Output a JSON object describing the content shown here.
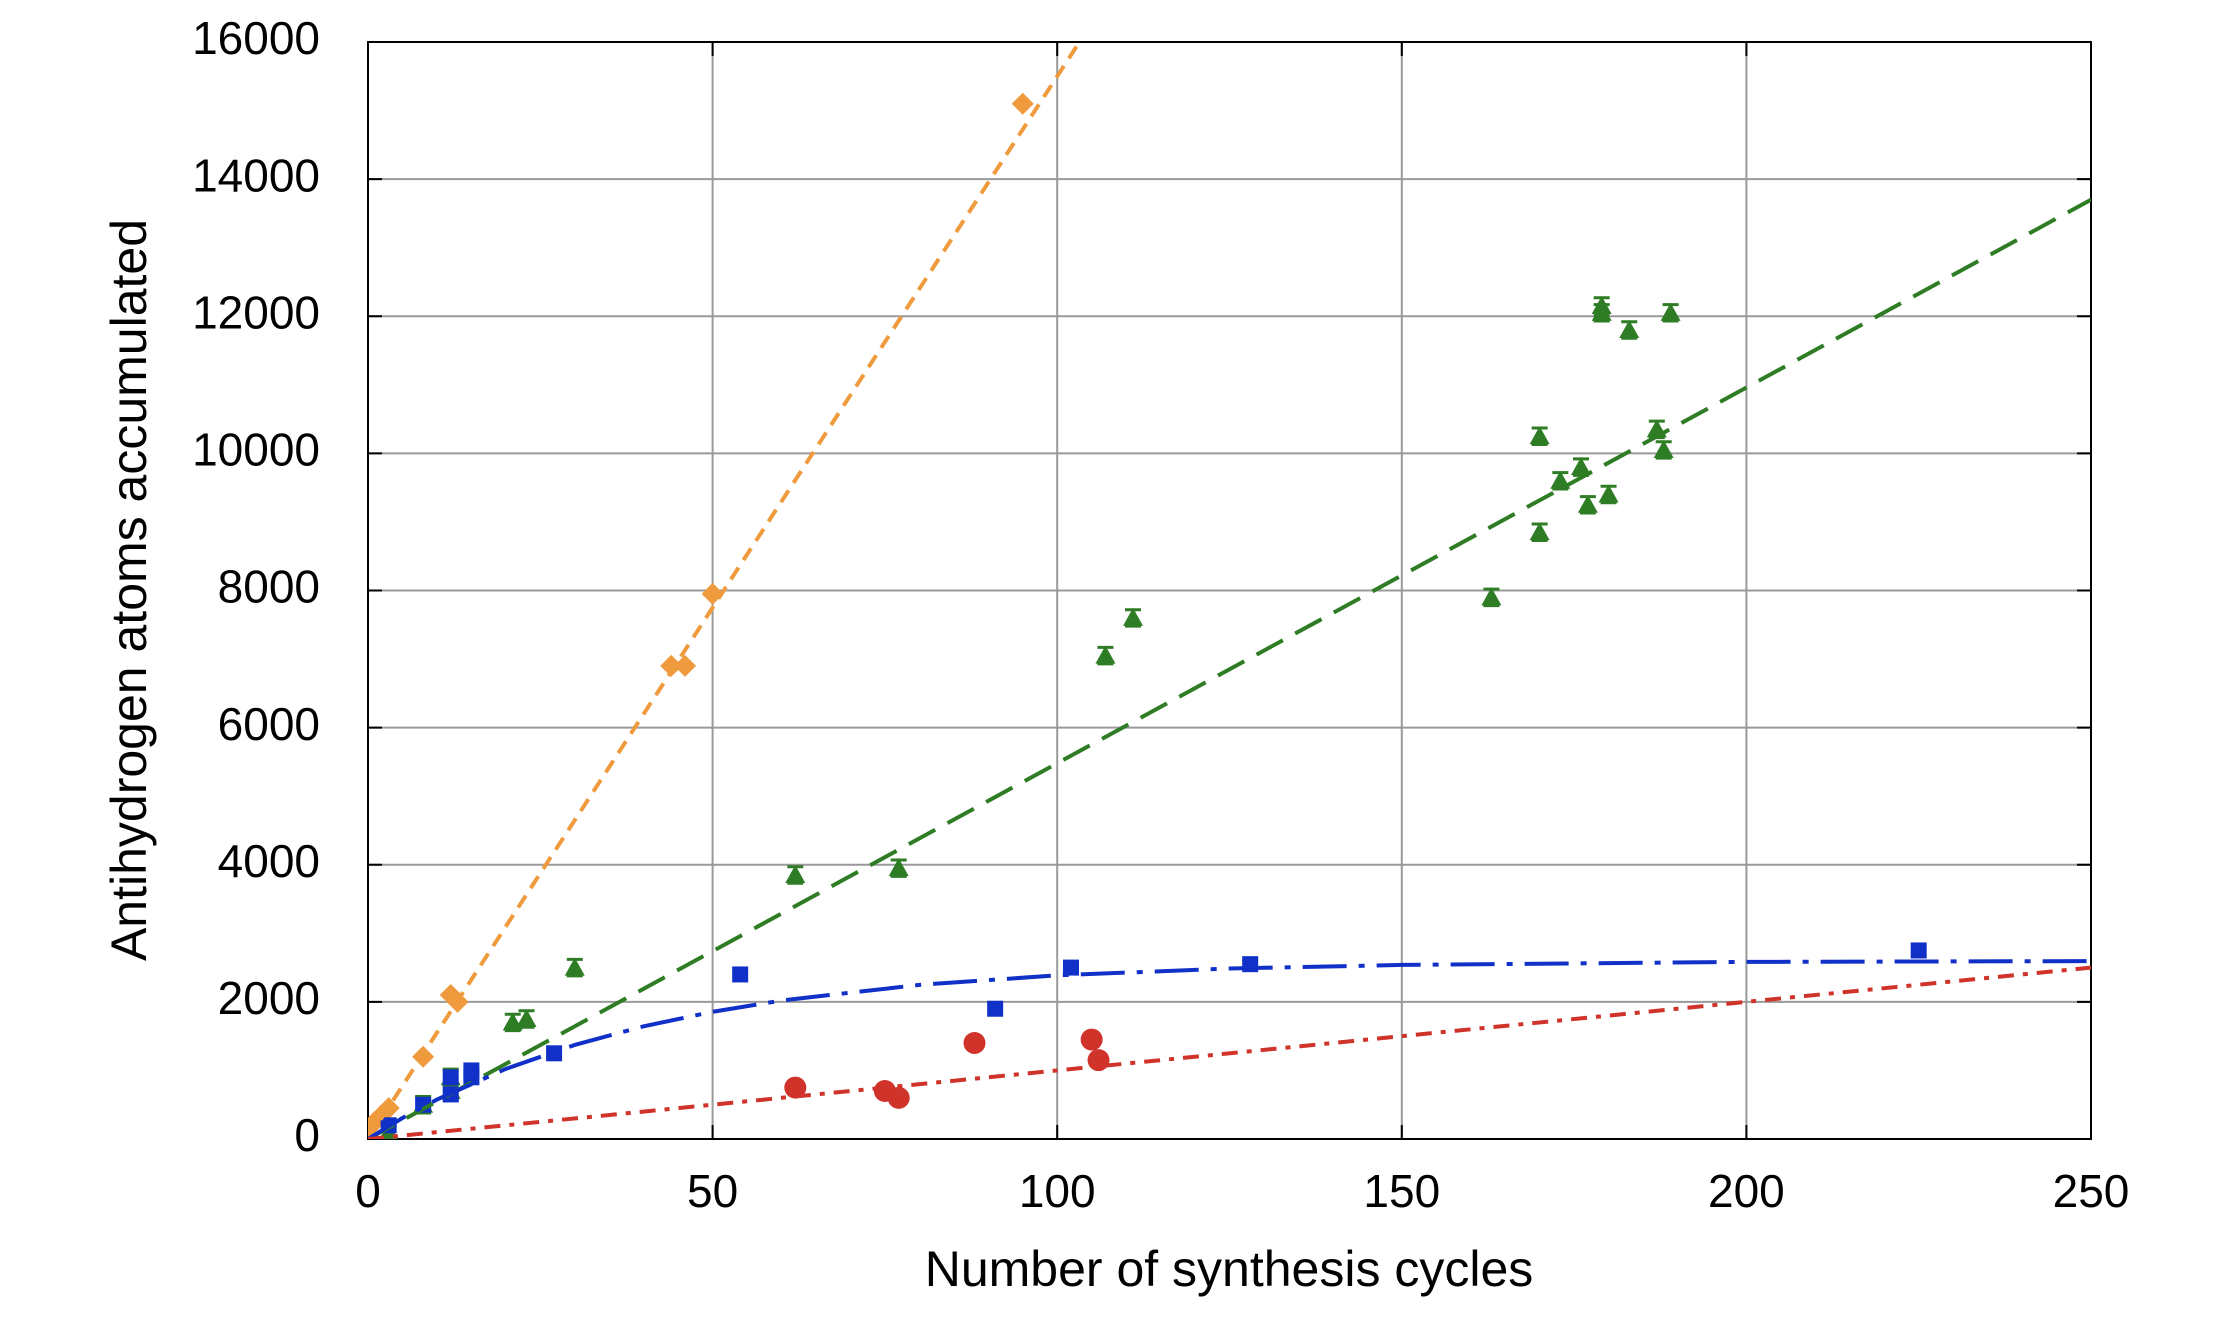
{
  "chart_data": {
    "type": "scatter",
    "x_label": "Number of synthesis cycles",
    "y_label": "Antihydrogen atoms accumulated",
    "xlim": [
      0,
      250
    ],
    "xticks": [
      0,
      50,
      100,
      150,
      200,
      250
    ],
    "ylim": [
      0,
      16000
    ],
    "yticks": [
      0,
      2000,
      4000,
      6000,
      8000,
      10000,
      12000,
      14000,
      16000
    ],
    "grid": true,
    "series": [
      {
        "color": "#ef9a3d",
        "marker": "diamond",
        "x": [
          0,
          1,
          2,
          3,
          8,
          12,
          13,
          44,
          46,
          50,
          95
        ],
        "values": [
          150,
          250,
          350,
          450,
          1200,
          2100,
          2000,
          6900,
          6900,
          7950,
          15100
        ]
      },
      {
        "color": "#2e7d24",
        "marker": "triangle",
        "x": [
          3,
          8,
          12,
          12,
          21,
          23,
          30,
          62,
          77,
          107,
          111,
          163,
          170,
          170,
          173,
          176,
          177,
          179,
          179,
          180,
          183,
          187,
          188,
          189
        ],
        "values": [
          100,
          500,
          900,
          700,
          1700,
          1750,
          2500,
          3850,
          3950,
          7050,
          7600,
          7900,
          8850,
          10250,
          9600,
          9800,
          9250,
          12150,
          12050,
          9400,
          11800,
          10350,
          10050,
          12050
        ],
        "errors": [
          120,
          120,
          120,
          120,
          120,
          120,
          120,
          120,
          120,
          120,
          120,
          120,
          120,
          120,
          120,
          120,
          120,
          120,
          120,
          120,
          120,
          120,
          120,
          120
        ]
      },
      {
        "color": "#1030c8",
        "marker": "square",
        "x": [
          3,
          8,
          12,
          12,
          15,
          15,
          27,
          54,
          91,
          102,
          128,
          225
        ],
        "values": [
          200,
          500,
          650,
          900,
          900,
          1000,
          1250,
          2400,
          1900,
          2500,
          2550,
          2750
        ]
      },
      {
        "color": "#d0332a",
        "marker": "circle",
        "x": [
          62,
          75,
          77,
          88,
          105,
          106
        ],
        "values": [
          750,
          700,
          600,
          1400,
          1450,
          1150
        ]
      },
      {
        "color": "#ef9a3d",
        "line": "short-dash",
        "x": [
          0,
          103
        ],
        "values": [
          0,
          15965
        ]
      },
      {
        "color": "#2e7d24",
        "line": "dash",
        "x": [
          0,
          250
        ],
        "values": [
          0,
          13700
        ]
      },
      {
        "color": "#1030c8",
        "line": "dash-dot",
        "x": [
          0,
          5,
          10,
          20,
          30,
          40,
          50,
          60,
          80,
          100,
          125,
          150,
          200,
          250
        ],
        "values": [
          0,
          306,
          575,
          1023,
          1372,
          1644,
          1855,
          2020,
          2248,
          2387,
          2486,
          2539,
          2583,
          2595
        ]
      },
      {
        "color": "#d0332a",
        "line": "short-dash-dot",
        "x": [
          0,
          250
        ],
        "values": [
          0,
          2500
        ]
      }
    ]
  }
}
